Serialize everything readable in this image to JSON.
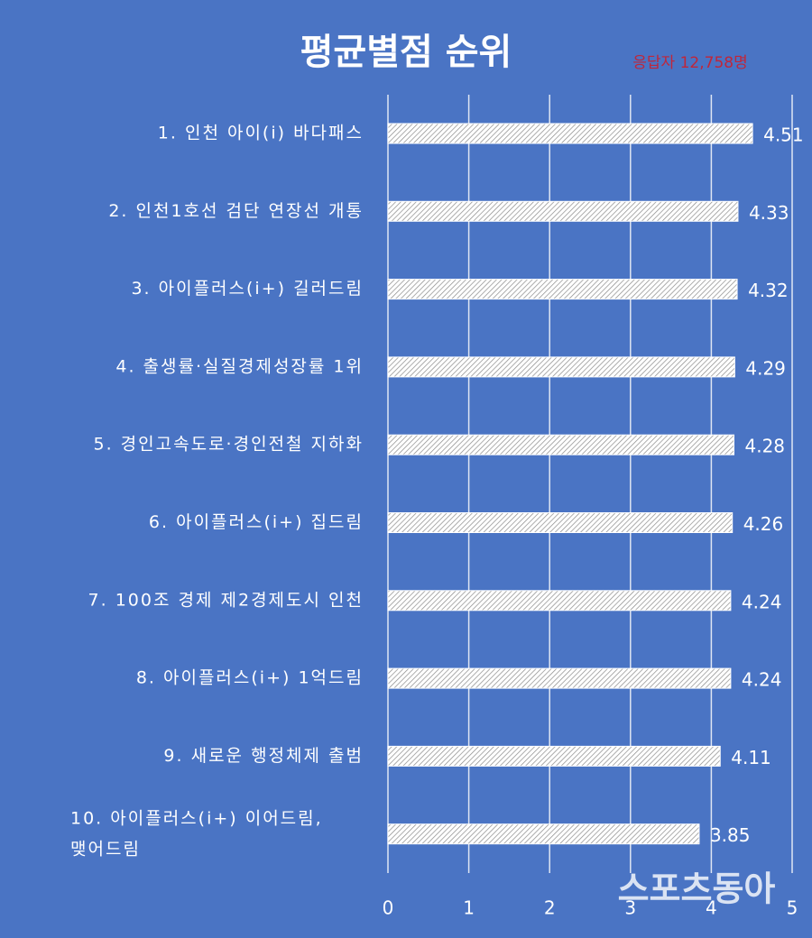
{
  "chart_data": {
    "type": "barh",
    "title": "평균별점 순위",
    "subtitle": "응답자 12,758명",
    "categories": [
      "1. 인천 아이(i) 바다패스",
      "2. 인천1호선 검단 연장선 개통",
      "3. 아이플러스(i+) 길러드림",
      "4. 출생률·실질경제성장률 1위",
      "5. 경인고속도로·경인전철 지하화",
      "6. 아이플러스(i+) 집드림",
      "7. 100조 경제 제2경제도시 인천",
      "8. 아이플러스(i+) 1억드림",
      "9. 새로운 행정체제 출범",
      "10. 아이플러스(i+) 이어드림,\n맺어드림"
    ],
    "values": [
      4.51,
      4.33,
      4.32,
      4.29,
      4.28,
      4.26,
      4.24,
      4.24,
      4.11,
      3.85
    ],
    "color": "#ffffff",
    "xlim": [
      0,
      5
    ],
    "xticks": [
      0,
      1,
      2,
      3,
      4,
      5
    ],
    "grid": true,
    "watermark": "스포츠동아"
  }
}
